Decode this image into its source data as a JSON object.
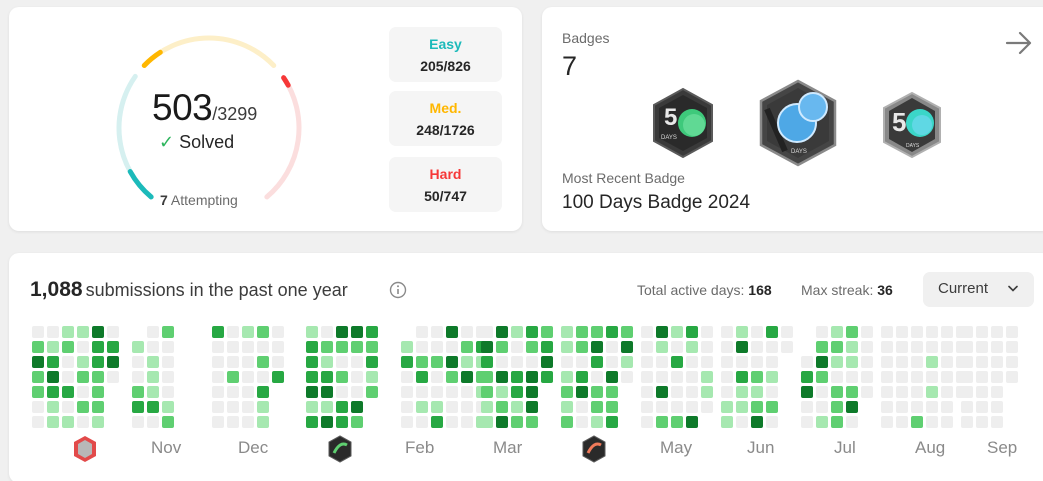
{
  "solved": {
    "count": "503",
    "total": "/3299",
    "label": "Solved",
    "attempting_count": "7",
    "attempting_label": "Attempting",
    "progress": {
      "easy": 0.248,
      "medium": 0.144,
      "hard": 0.067
    }
  },
  "difficulty": [
    {
      "label": "Easy",
      "value": "205/826",
      "color": "#1cbaba"
    },
    {
      "label": "Med.",
      "value": "248/1726",
      "color": "#ffb700"
    },
    {
      "label": "Hard",
      "value": "50/747",
      "color": "#f63737"
    }
  ],
  "badges": {
    "title": "Badges",
    "count": "7",
    "items": [
      {
        "name": "50 Days badge",
        "icon": "50-days-badge-green"
      },
      {
        "name": "100 Days badge",
        "icon": "100-days-badge-blue"
      },
      {
        "name": "50 Days badge",
        "icon": "50-days-badge-cyan"
      }
    ],
    "recent_label": "Most Recent Badge",
    "recent_name": "100 Days Badge 2024"
  },
  "calendar": {
    "submissions_count": "1,088",
    "submissions_text": "submissions in the past one year",
    "active_days_label": "Total active days:",
    "active_days": "168",
    "max_streak_label": "Max streak:",
    "max_streak": "36",
    "range_selector": "Current",
    "months": [
      "Nov",
      "Dec",
      "Feb",
      "Mar",
      "May",
      "Jun",
      "Jul",
      "Aug",
      "Sep"
    ],
    "colors": {
      "empty": "#eeeeee",
      "level1": "#a6e8b0",
      "level2": "#5fcf71",
      "level3": "#27a843",
      "level4": "#0e7a2a"
    }
  }
}
